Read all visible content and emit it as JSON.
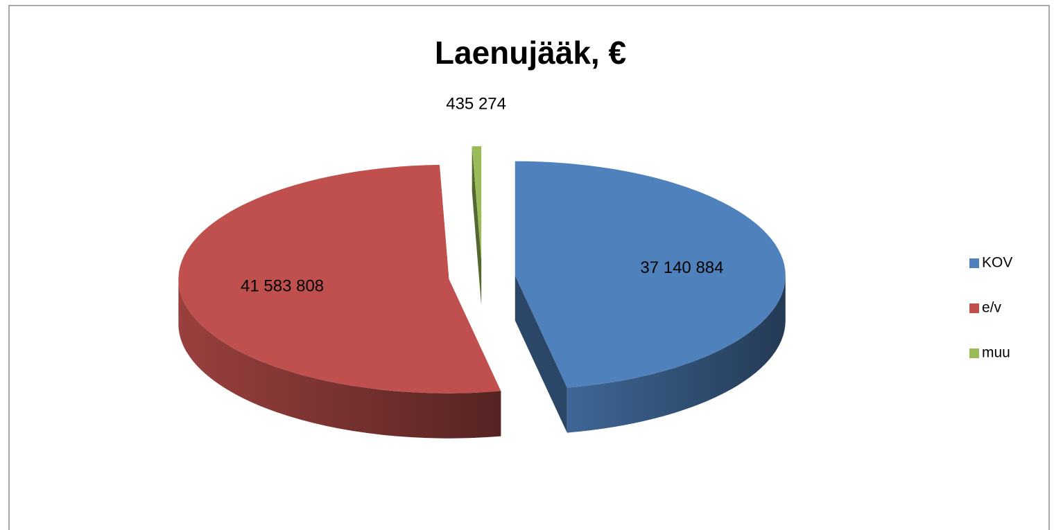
{
  "chart_data": {
    "type": "pie",
    "title": "Laenujääk, €",
    "categories": [
      "KOV",
      "e/v",
      "muu"
    ],
    "values": [
      37140884,
      41583808,
      435274
    ],
    "value_labels": [
      "37 140 884",
      "41 583 808",
      "435 274"
    ],
    "colors": [
      "#4f81bd",
      "#c0504d",
      "#9bbb59"
    ],
    "legend": "right",
    "exploded": true,
    "three_d": true
  }
}
